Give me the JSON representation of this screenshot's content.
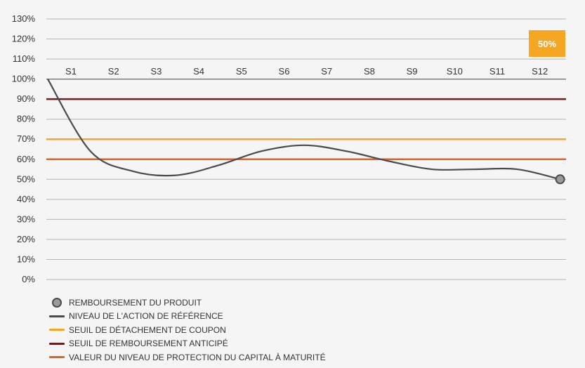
{
  "chart_data": {
    "type": "line",
    "y_ticks": [
      "130%",
      "120%",
      "110%",
      "100%",
      "90%",
      "80%",
      "70%",
      "60%",
      "50%",
      "40%",
      "30%",
      "20%",
      "10%",
      "0%"
    ],
    "ylim": [
      0,
      130
    ],
    "categories": [
      "S1",
      "S2",
      "S3",
      "S4",
      "S5",
      "S6",
      "S7",
      "S8",
      "S9",
      "S10",
      "S11",
      "S12"
    ],
    "series": [
      {
        "name": "NIVEAU DE L'ACTION DE RÉFÉRENCE",
        "color": "#4a4a52",
        "points": [
          [
            0,
            100
          ],
          [
            1,
            64
          ],
          [
            2,
            54
          ],
          [
            3,
            52
          ],
          [
            4,
            57
          ],
          [
            5,
            64
          ],
          [
            6,
            67
          ],
          [
            7,
            64
          ],
          [
            8,
            59
          ],
          [
            9,
            55
          ],
          [
            10,
            55
          ],
          [
            11,
            55
          ],
          [
            12,
            50
          ]
        ]
      }
    ],
    "thresholds": [
      {
        "name": "SEUIL DE REMBOURSEMENT ANTICIPÉ",
        "value": 90,
        "color": "#6b1f1f"
      },
      {
        "name": "SEUIL DE DÉTACHEMENT DE COUPON",
        "value": 70,
        "color": "#f5a623"
      },
      {
        "name": "VALEUR DU NIVEAU DE PROTECTION DU CAPITAL À MATURITÉ",
        "value": 60,
        "color": "#e8601c"
      }
    ],
    "marker": {
      "name": "REMBOURSEMENT DU PRODUIT",
      "x": 12,
      "y": 50,
      "fill": "#9a9a9a",
      "stroke": "#4a4a52"
    },
    "badge": {
      "label": "50%",
      "color": "#f5a623"
    }
  },
  "legend": [
    {
      "type": "dot",
      "label": "REMBOURSEMENT DU PRODUIT"
    },
    {
      "type": "line",
      "color": "#4a4a52",
      "label": "NIVEAU DE L'ACTION DE RÉFÉRENCE"
    },
    {
      "type": "line",
      "color": "#f5a623",
      "label": "SEUIL DE DÉTACHEMENT DE COUPON"
    },
    {
      "type": "line",
      "color": "#6b1f1f",
      "label": "SEUIL DE REMBOURSEMENT ANTICIPÉ"
    },
    {
      "type": "line",
      "color": "#e8601c",
      "label": "VALEUR DU NIVEAU DE PROTECTION DU CAPITAL À MATURITÉ"
    }
  ]
}
